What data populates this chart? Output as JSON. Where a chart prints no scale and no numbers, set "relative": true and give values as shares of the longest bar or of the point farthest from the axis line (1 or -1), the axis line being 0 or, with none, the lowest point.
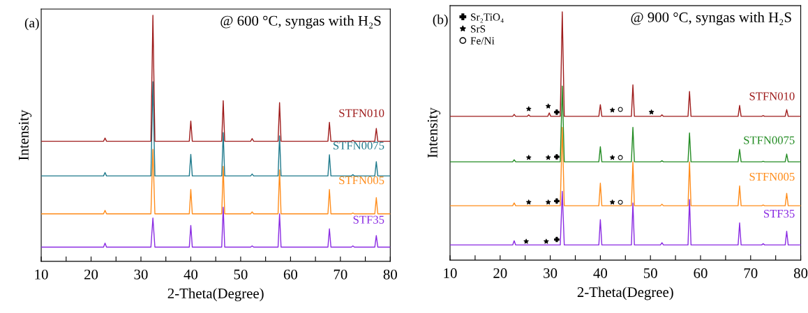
{
  "chart_data": [
    {
      "type": "line",
      "relative": true,
      "tick_labels": "x",
      "xlabel": "2-Theta(Degree)",
      "ylabel": "Intensity",
      "annotations": [
        "(a)",
        "@ 600 °C, syngas with H₂S"
      ],
      "xlim": [
        10,
        80
      ],
      "xticks": [
        10,
        {
          "value": 15,
          "label": null
        },
        20,
        {
          "value": 25,
          "label": null
        },
        30,
        {
          "value": 35,
          "label": null
        },
        40,
        {
          "value": 45,
          "label": null
        },
        50,
        {
          "value": 55,
          "label": null
        },
        60,
        {
          "value": 65,
          "label": null
        },
        70,
        {
          "value": 75,
          "label": null
        },
        80
      ],
      "x": [
        10,
        22.5,
        22.8,
        23.1,
        32.0,
        32.4,
        32.8,
        39.7,
        40.0,
        40.3,
        46.2,
        46.5,
        46.8,
        52.0,
        52.3,
        52.6,
        57.5,
        57.8,
        58.1,
        67.5,
        67.8,
        68.1,
        72.2,
        72.5,
        72.8,
        76.9,
        77.2,
        77.5,
        80
      ],
      "series": [
        {
          "name": "STFN010",
          "color": "#9e1b1b",
          "values": [
            0.488,
            0.488,
            0.501,
            0.488,
            0.488,
            1.0,
            0.488,
            0.488,
            0.57,
            0.488,
            0.488,
            0.653,
            0.488,
            0.488,
            0.499,
            0.488,
            0.488,
            0.645,
            0.488,
            0.488,
            0.565,
            0.488,
            0.488,
            0.492,
            0.488,
            0.488,
            0.54,
            0.488,
            0.488
          ]
        },
        {
          "name": "STFN0075",
          "color": "#1f7a8c",
          "values": [
            0.347,
            0.347,
            0.361,
            0.347,
            0.347,
            0.73,
            0.347,
            0.347,
            0.435,
            0.347,
            0.347,
            0.523,
            0.347,
            0.347,
            0.355,
            0.347,
            0.347,
            0.51,
            0.347,
            0.347,
            0.433,
            0.347,
            0.347,
            0.352,
            0.347,
            0.347,
            0.405,
            0.347,
            0.347
          ]
        },
        {
          "name": "STFN005",
          "color": "#ff8c1a",
          "values": [
            0.193,
            0.193,
            0.207,
            0.193,
            0.193,
            0.455,
            0.193,
            0.193,
            0.292,
            0.193,
            0.193,
            0.386,
            0.193,
            0.193,
            0.201,
            0.193,
            0.193,
            0.372,
            0.193,
            0.193,
            0.292,
            0.193,
            0.193,
            0.196,
            0.193,
            0.193,
            0.259,
            0.193,
            0.193
          ]
        },
        {
          "name": "STF35",
          "color": "#8a2be2",
          "values": [
            0.058,
            0.058,
            0.074,
            0.058,
            0.058,
            0.176,
            0.058,
            0.058,
            0.146,
            0.058,
            0.058,
            0.22,
            0.058,
            0.058,
            0.063,
            0.058,
            0.058,
            0.193,
            0.058,
            0.058,
            0.132,
            0.058,
            0.058,
            0.063,
            0.058,
            0.058,
            0.105,
            0.058,
            0.058
          ]
        }
      ]
    },
    {
      "type": "line",
      "relative": true,
      "tick_labels": "x",
      "xlabel": "2-Theta(Degree)",
      "ylabel": "Intensity",
      "legend": "top left",
      "annotations": [
        "(b)",
        "@ 900 °C, syngas with H₂S"
      ],
      "xlim": [
        10,
        80
      ],
      "xticks": [
        10,
        {
          "value": 15,
          "label": null
        },
        20,
        {
          "value": 25,
          "label": null
        },
        30,
        {
          "value": 35,
          "label": null
        },
        40,
        {
          "value": 45,
          "label": null
        },
        50,
        {
          "value": 55,
          "label": null
        },
        60,
        {
          "value": 65,
          "label": null
        },
        70,
        {
          "value": 75,
          "label": null
        },
        80
      ],
      "x": [
        10,
        22.5,
        22.8,
        23.1,
        32.0,
        32.4,
        32.8,
        39.7,
        40.0,
        40.3,
        46.2,
        46.5,
        46.8,
        52.0,
        52.3,
        52.6,
        57.5,
        57.8,
        58.1,
        67.5,
        67.8,
        68.1,
        72.2,
        72.5,
        72.8,
        76.9,
        77.2,
        77.5,
        80
      ],
      "series": [
        {
          "name": "STFN010",
          "color": "#9e1b1b",
          "x": [
            10,
            22.5,
            22.8,
            23.1,
            25.4,
            25.7,
            26.0,
            29.5,
            29.8,
            30.1,
            32.0,
            32.4,
            32.8,
            39.7,
            40.0,
            40.3,
            46.2,
            46.5,
            46.8,
            52.0,
            52.3,
            52.6,
            57.5,
            57.8,
            58.1,
            67.5,
            67.8,
            68.1,
            72.2,
            72.5,
            72.8,
            76.9,
            77.2,
            77.5,
            80
          ],
          "values": [
            0.579,
            0.579,
            0.587,
            0.579,
            0.579,
            0.585,
            0.579,
            0.579,
            0.593,
            0.579,
            0.579,
            1.0,
            0.579,
            0.579,
            0.626,
            0.579,
            0.579,
            0.706,
            0.579,
            0.579,
            0.585,
            0.579,
            0.579,
            0.679,
            0.579,
            0.579,
            0.623,
            0.579,
            0.579,
            0.582,
            0.579,
            0.579,
            0.606,
            0.579,
            0.579
          ]
        },
        {
          "name": "STFN0075",
          "color": "#228b22",
          "values": [
            0.396,
            0.396,
            0.404,
            0.396,
            0.396,
            0.701,
            0.396,
            0.396,
            0.457,
            0.396,
            0.396,
            0.535,
            0.396,
            0.396,
            0.4,
            0.396,
            0.396,
            0.512,
            0.396,
            0.396,
            0.446,
            0.396,
            0.396,
            0.398,
            0.396,
            0.396,
            0.427,
            0.396,
            0.396
          ]
        },
        {
          "name": "STFN005",
          "color": "#ff8c1a",
          "values": [
            0.219,
            0.219,
            0.23,
            0.219,
            0.219,
            0.535,
            0.219,
            0.219,
            0.31,
            0.219,
            0.219,
            0.396,
            0.219,
            0.219,
            0.225,
            0.219,
            0.219,
            0.396,
            0.219,
            0.219,
            0.299,
            0.219,
            0.219,
            0.222,
            0.219,
            0.219,
            0.269,
            0.219,
            0.219
          ]
        },
        {
          "name": "STF35",
          "color": "#8a2be2",
          "values": [
            0.061,
            0.061,
            0.078,
            0.061,
            0.061,
            0.277,
            0.061,
            0.061,
            0.163,
            0.061,
            0.061,
            0.23,
            0.061,
            0.061,
            0.07,
            0.061,
            0.061,
            0.244,
            0.061,
            0.061,
            0.15,
            0.061,
            0.061,
            0.066,
            0.061,
            0.061,
            0.116,
            0.061,
            0.061
          ]
        },
        {
          "name": "Sr₂TiO₄",
          "type": "scatter",
          "marker": "cross",
          "color": "#000000",
          "x": [
            31.3,
            31.3,
            31.3,
            31.3
          ],
          "values": [
            0.596,
            0.416,
            0.238,
            0.083
          ]
        },
        {
          "name": "SrS",
          "type": "scatter",
          "marker": "star",
          "color": "#000000",
          "x": [
            25.7,
            29.6,
            42.4,
            50.2,
            25.7,
            29.6,
            42.4,
            25.7,
            29.6,
            42.4,
            25.2,
            29.2
          ],
          "values": [
            0.609,
            0.62,
            0.604,
            0.596,
            0.413,
            0.413,
            0.413,
            0.233,
            0.233,
            0.233,
            0.075,
            0.075
          ]
        },
        {
          "name": "Fe/Ni",
          "type": "scatter",
          "marker": "circle",
          "color": "#000000",
          "x": [
            44.0,
            44.0,
            44.0
          ],
          "values": [
            0.607,
            0.413,
            0.233
          ]
        }
      ]
    }
  ]
}
